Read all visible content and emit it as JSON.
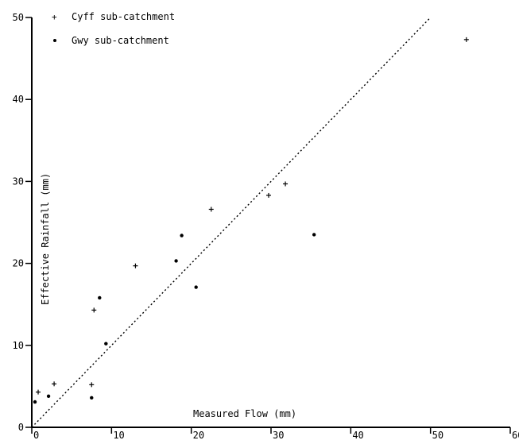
{
  "chart_data": {
    "type": "scatter",
    "title": "",
    "xlabel": "Measured Flow (mm)",
    "ylabel": "Effective Rainfall (mm)",
    "xlim": [
      0,
      60
    ],
    "ylim": [
      0,
      50
    ],
    "x_ticks": [
      0,
      10,
      20,
      30,
      40,
      50,
      60
    ],
    "x_tick_labels": [
      "0",
      "10",
      "20",
      "30",
      "40",
      "50",
      "60"
    ],
    "y_ticks": [
      0,
      10,
      20,
      30,
      40,
      50
    ],
    "y_tick_labels": [
      "0",
      "10",
      "20",
      "30",
      "40",
      "50"
    ],
    "grid": false,
    "legend_position": "top-left",
    "reference_line": {
      "style": "dotted",
      "from": [
        0,
        0
      ],
      "to": [
        50,
        50
      ]
    },
    "series": [
      {
        "name": "Cyff sub-catchment",
        "marker": "plus",
        "points": [
          {
            "x": 0.8,
            "y": 4.3
          },
          {
            "x": 2.8,
            "y": 5.3
          },
          {
            "x": 7.5,
            "y": 5.2
          },
          {
            "x": 7.8,
            "y": 14.3
          },
          {
            "x": 13.0,
            "y": 19.7
          },
          {
            "x": 22.5,
            "y": 26.6
          },
          {
            "x": 29.7,
            "y": 28.3
          },
          {
            "x": 31.8,
            "y": 29.7
          },
          {
            "x": 54.5,
            "y": 47.3
          }
        ]
      },
      {
        "name": "Gwy sub-catchment",
        "marker": "dot",
        "points": [
          {
            "x": 0.4,
            "y": 3.1
          },
          {
            "x": 2.1,
            "y": 3.8
          },
          {
            "x": 7.5,
            "y": 3.6
          },
          {
            "x": 8.5,
            "y": 15.8
          },
          {
            "x": 9.3,
            "y": 10.2
          },
          {
            "x": 18.1,
            "y": 20.3
          },
          {
            "x": 18.8,
            "y": 23.4
          },
          {
            "x": 20.6,
            "y": 17.1
          },
          {
            "x": 35.4,
            "y": 23.5
          }
        ]
      }
    ]
  }
}
